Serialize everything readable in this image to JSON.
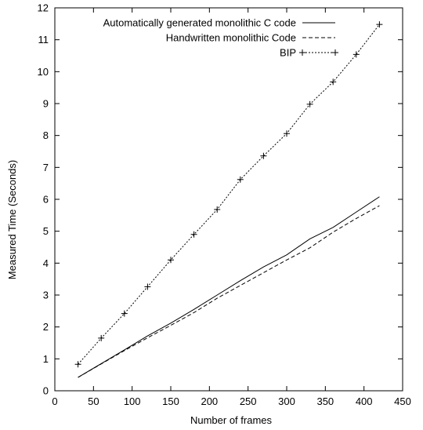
{
  "chart_data": {
    "type": "line",
    "title": "",
    "xlabel": "Number of frames",
    "ylabel": "Measured Time (Seconds)",
    "xlim": [
      0,
      450
    ],
    "ylim": [
      0,
      12
    ],
    "x_ticks": [
      0,
      50,
      100,
      150,
      200,
      250,
      300,
      350,
      400,
      450
    ],
    "y_ticks": [
      0,
      1,
      2,
      3,
      4,
      5,
      6,
      7,
      8,
      9,
      10,
      11,
      12
    ],
    "grid": false,
    "legend_position": "top-right",
    "series": [
      {
        "name": "Automatically generated monolithic C code",
        "style": "solid",
        "marker": "none",
        "x": [
          30,
          60,
          90,
          120,
          150,
          180,
          210,
          240,
          270,
          300,
          330,
          360,
          390,
          420
        ],
        "y": [
          0.42,
          0.85,
          1.28,
          1.72,
          2.12,
          2.55,
          3.0,
          3.45,
          3.88,
          4.26,
          4.76,
          5.12,
          5.6,
          6.08
        ]
      },
      {
        "name": "Handwritten monolithic Code",
        "style": "dashed",
        "marker": "none",
        "x": [
          30,
          60,
          90,
          120,
          150,
          180,
          210,
          240,
          270,
          300,
          330,
          360,
          390,
          420
        ],
        "y": [
          0.42,
          0.84,
          1.26,
          1.66,
          2.05,
          2.45,
          2.9,
          3.3,
          3.7,
          4.1,
          4.48,
          4.97,
          5.4,
          5.8
        ]
      },
      {
        "name": "BIP",
        "style": "dotted",
        "marker": "plus",
        "x": [
          30,
          60,
          90,
          120,
          150,
          180,
          210,
          240,
          270,
          300,
          330,
          360,
          390,
          420
        ],
        "y": [
          0.83,
          1.65,
          2.42,
          3.26,
          4.1,
          4.9,
          5.68,
          6.62,
          7.36,
          8.06,
          8.98,
          9.68,
          10.54,
          11.48
        ]
      }
    ]
  }
}
